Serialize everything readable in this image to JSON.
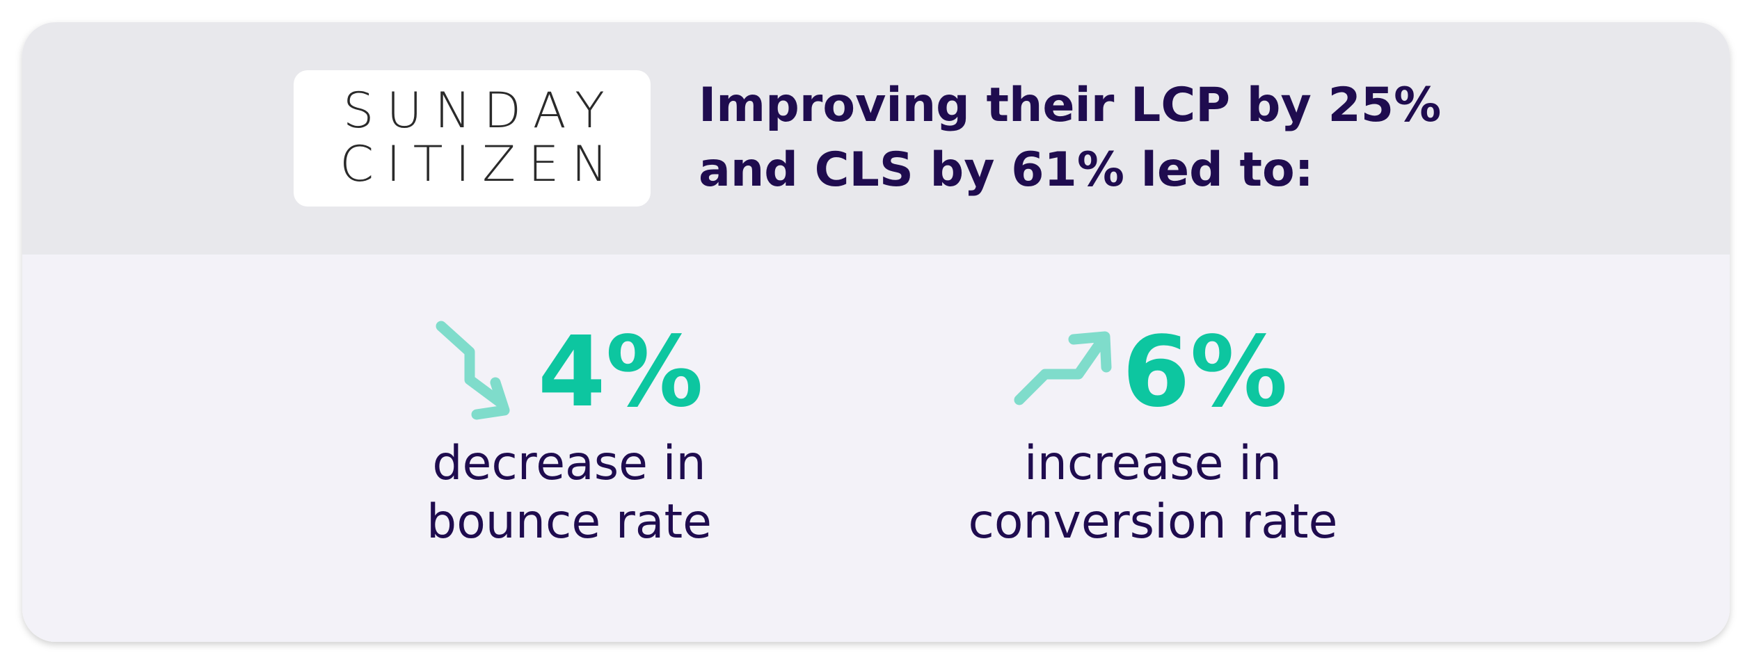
{
  "header": {
    "logo": [
      "SUNDAY",
      "CITIZEN"
    ],
    "headline": [
      [
        {
          "text": "Improving their ",
          "bold": false
        },
        {
          "text": "LCP",
          "bold": true
        },
        {
          "text": " by 25%",
          "bold": false
        }
      ],
      [
        {
          "text": "and ",
          "bold": false
        },
        {
          "text": "CLS",
          "bold": true
        },
        {
          "text": " by 61% led to:",
          "bold": false
        }
      ]
    ]
  },
  "stats": [
    {
      "value": "4%",
      "label": [
        "decrease in",
        "bounce rate"
      ]
    },
    {
      "value": "6%",
      "label": [
        "increase in",
        "conversion rate"
      ]
    }
  ]
}
